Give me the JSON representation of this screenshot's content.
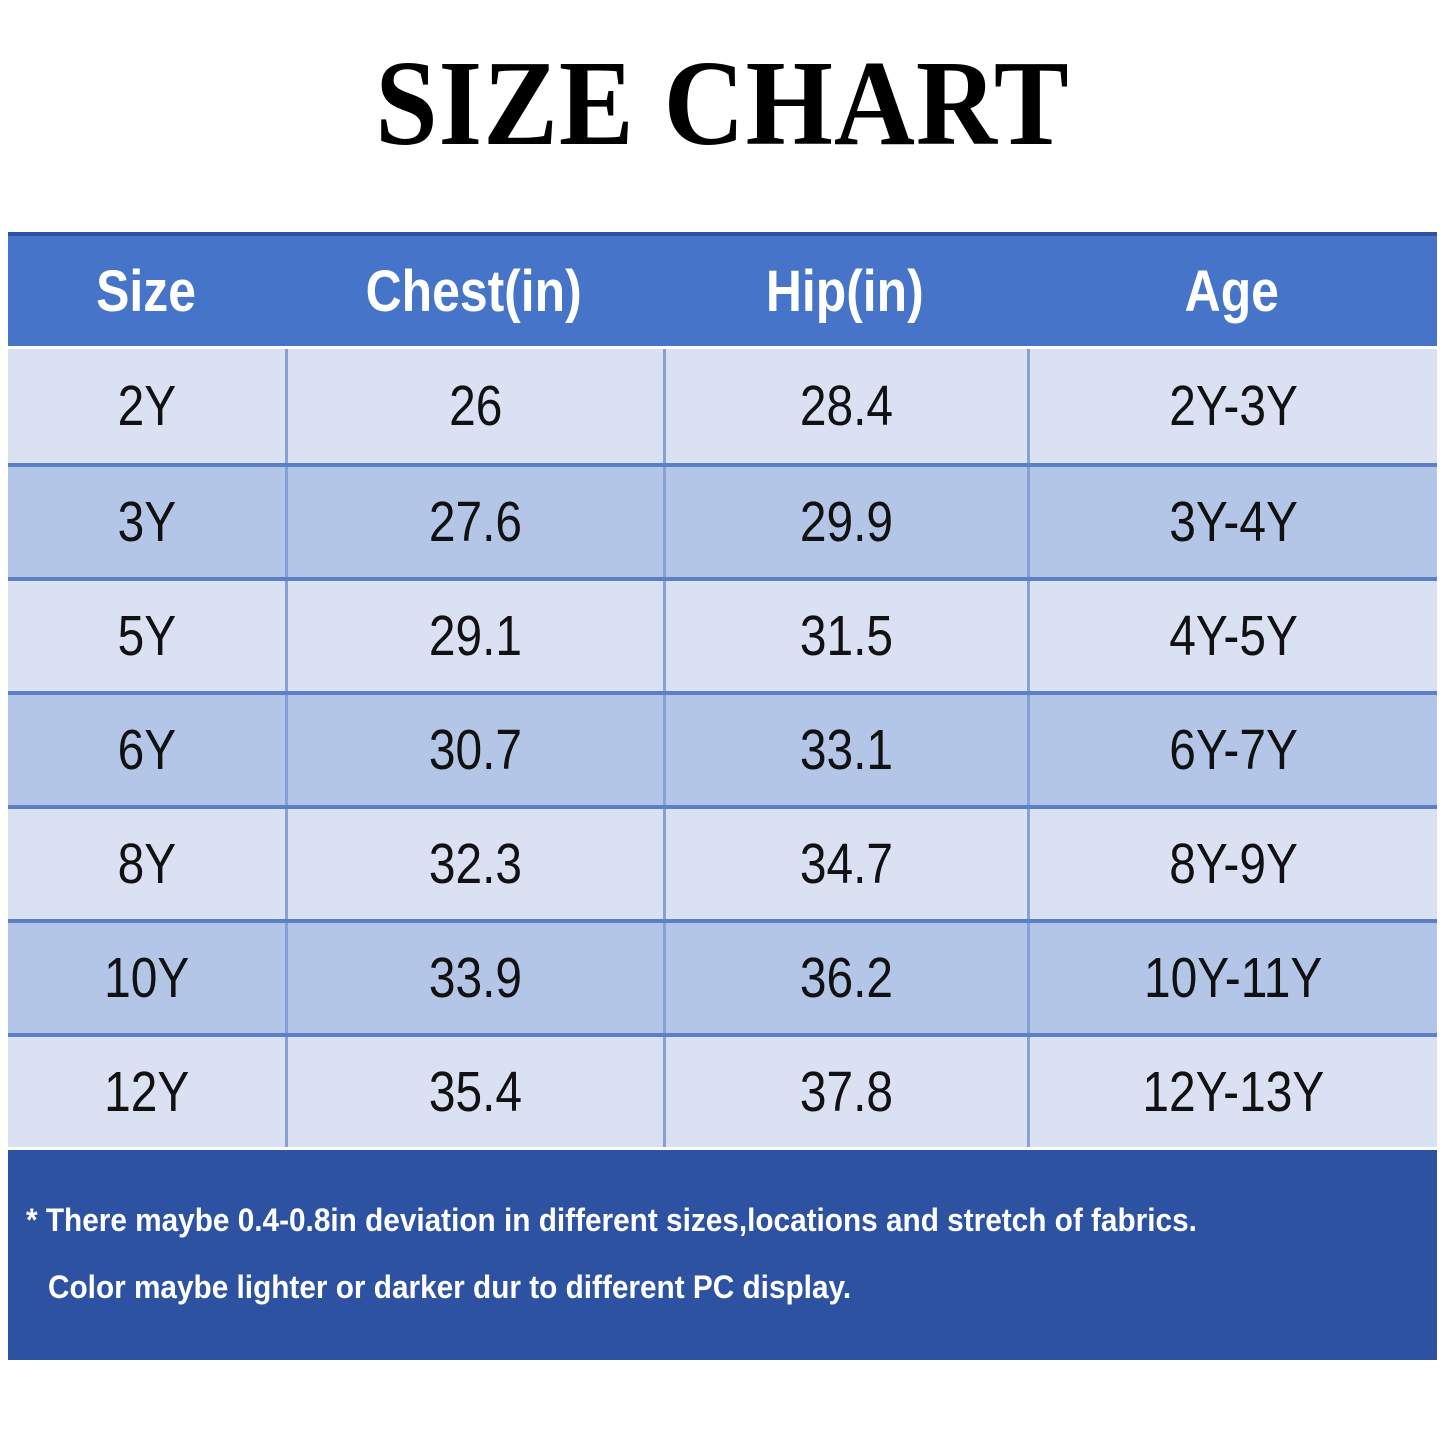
{
  "title": "SIZE CHART",
  "chart_data": {
    "type": "table",
    "title": "SIZE CHART",
    "columns": [
      "Size",
      "Chest(in)",
      "Hip(in)",
      "Age"
    ],
    "rows": [
      [
        "2Y",
        "26",
        "28.4",
        "2Y-3Y"
      ],
      [
        "3Y",
        "27.6",
        "29.9",
        "3Y-4Y"
      ],
      [
        "5Y",
        "29.1",
        "31.5",
        "4Y-5Y"
      ],
      [
        "6Y",
        "30.7",
        "33.1",
        "6Y-7Y"
      ],
      [
        "8Y",
        "32.3",
        "34.7",
        "8Y-9Y"
      ],
      [
        "10Y",
        "33.9",
        "36.2",
        "10Y-11Y"
      ],
      [
        "12Y",
        "35.4",
        "37.8",
        "12Y-13Y"
      ]
    ],
    "notes": [
      "* There maybe 0.4-0.8in deviation in different sizes,locations and stretch of fabrics.",
      "Color maybe lighter or darker dur to different PC display."
    ]
  },
  "notes": {
    "line1": "* There maybe 0.4-0.8in deviation in different sizes,locations and stretch of fabrics.",
    "line2": "Color maybe lighter or darker dur to different PC display."
  },
  "colors": {
    "header_bg": "#4674C8",
    "header_top_border": "#2E52A0",
    "row_light": "#DAE1F3",
    "row_dark": "#B4C6E7",
    "row_border": "#5B80C5",
    "col_divider": "#87A1D6",
    "footer_bg": "#2D52A2",
    "text": "#111111",
    "header_text": "#FFFFFF"
  }
}
